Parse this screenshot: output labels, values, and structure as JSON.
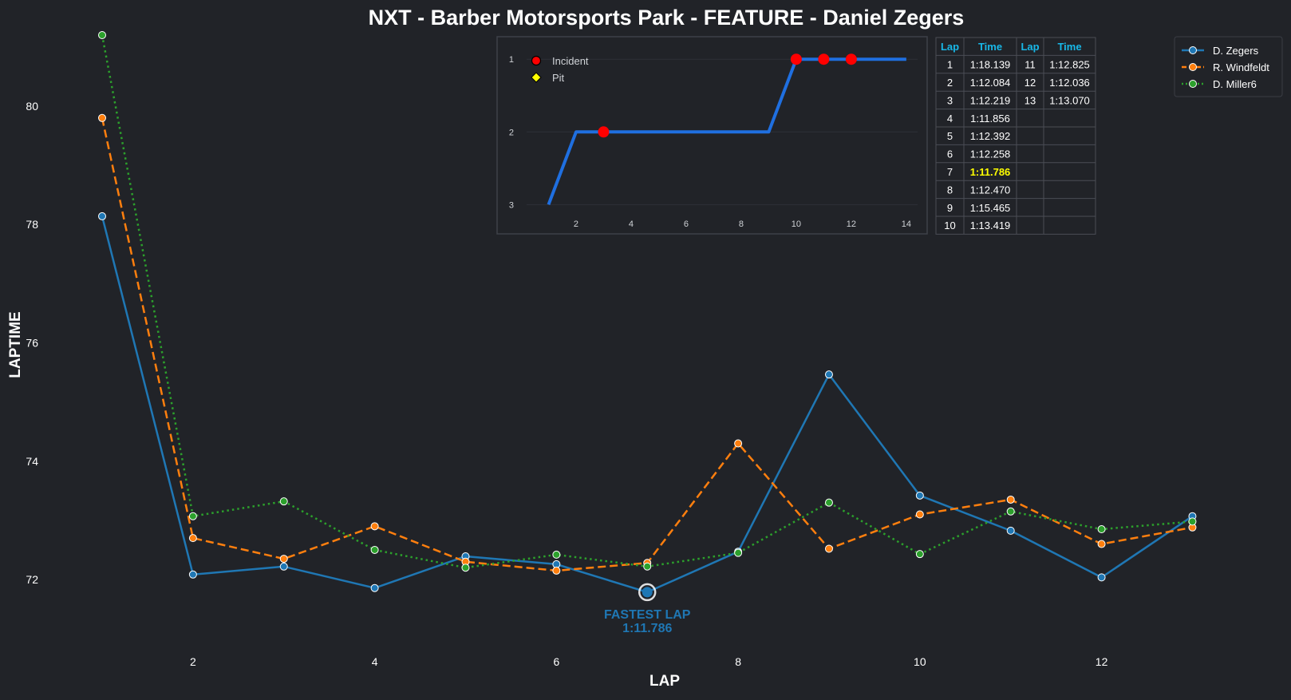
{
  "chart_data": [
    {
      "type": "line",
      "title": "NXT - Barber Motorsports Park - FEATURE - Daniel Zegers",
      "xlabel": "LAP",
      "ylabel": "LAPTIME",
      "xlim": [
        1,
        13.4
      ],
      "ylim": [
        70.8,
        81.2
      ],
      "xticks": [
        2,
        4,
        6,
        8,
        10,
        12
      ],
      "yticks": [
        72,
        74,
        76,
        78,
        80
      ],
      "legend_position": "top-right",
      "series": [
        {
          "name": "D. Zegers",
          "color": "#1f77b4",
          "style": "solid",
          "x": [
            1,
            2,
            3,
            4,
            5,
            6,
            7,
            8,
            9,
            10,
            11,
            12,
            13
          ],
          "values": [
            78.139,
            72.084,
            72.219,
            71.856,
            72.392,
            72.258,
            71.786,
            72.47,
            75.465,
            73.419,
            72.825,
            72.036,
            73.07
          ]
        },
        {
          "name": "R. Windfeldt",
          "color": "#ff7f0e",
          "style": "dashed",
          "x": [
            1,
            2,
            3,
            4,
            5,
            6,
            7,
            8,
            9,
            10,
            11,
            12,
            13
          ],
          "values": [
            79.8,
            72.7,
            72.35,
            72.9,
            72.3,
            72.15,
            72.28,
            74.3,
            72.52,
            73.1,
            73.35,
            72.6,
            72.88
          ]
        },
        {
          "name": "D. Miller6",
          "color": "#2ca02c",
          "style": "dotted",
          "x": [
            1,
            2,
            3,
            4,
            5,
            6,
            7,
            8,
            9,
            10,
            11,
            12,
            13
          ],
          "values": [
            81.2,
            73.07,
            73.32,
            72.5,
            72.2,
            72.42,
            72.22,
            72.45,
            73.3,
            72.43,
            73.15,
            72.85,
            72.98
          ]
        }
      ],
      "fastest_lap": {
        "lap": 7,
        "value": 71.786,
        "label": "FASTEST LAP",
        "time": "1:11.786"
      }
    },
    {
      "type": "line",
      "title": "",
      "xlim": [
        0.0,
        14.7
      ],
      "ylim": [
        3.15,
        0.8
      ],
      "xticks": [
        2,
        4,
        6,
        8,
        10,
        12,
        14
      ],
      "yticks": [
        1,
        2,
        3
      ],
      "x": [
        1,
        2,
        3,
        4,
        5,
        6,
        7,
        8,
        9,
        10,
        11,
        12,
        13,
        14
      ],
      "values": [
        3,
        2,
        2,
        2,
        2,
        2,
        2,
        2,
        2,
        1,
        1,
        1,
        1,
        1
      ],
      "series_color": "#1f6fe0",
      "incidents": [
        {
          "x": 3,
          "y": 2
        },
        {
          "x": 10,
          "y": 1
        },
        {
          "x": 11,
          "y": 1
        },
        {
          "x": 12,
          "y": 1
        }
      ],
      "legend": [
        {
          "label": "Incident",
          "color": "#ff0000",
          "marker": "circle"
        },
        {
          "label": "Pit",
          "color": "#ffff00",
          "marker": "diamond"
        }
      ]
    },
    {
      "type": "table",
      "headers": [
        "Lap",
        "Time",
        "Lap",
        "Time"
      ],
      "rows": [
        [
          "1",
          "1:18.139",
          "11",
          "1:12.825"
        ],
        [
          "2",
          "1:12.084",
          "12",
          "1:12.036"
        ],
        [
          "3",
          "1:12.219",
          "13",
          "1:13.070"
        ],
        [
          "4",
          "1:11.856",
          "",
          ""
        ],
        [
          "5",
          "1:12.392",
          "",
          ""
        ],
        [
          "6",
          "1:12.258",
          "",
          ""
        ],
        [
          "7",
          "1:11.786",
          "",
          ""
        ],
        [
          "8",
          "1:12.470",
          "",
          ""
        ],
        [
          "9",
          "1:15.465",
          "",
          ""
        ],
        [
          "10",
          "1:13.419",
          "",
          ""
        ]
      ],
      "best_row": 6,
      "best_color": "#ffff00",
      "header_color": "#18b8e8"
    }
  ]
}
